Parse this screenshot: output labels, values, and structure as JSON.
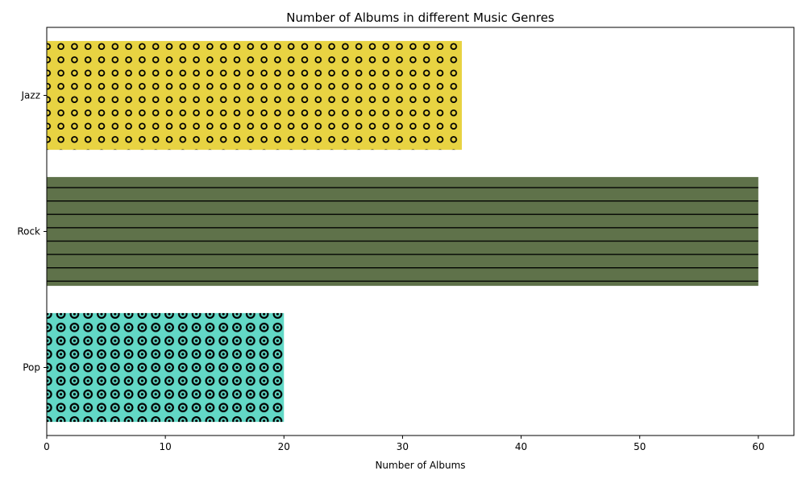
{
  "chart_data": {
    "type": "bar",
    "orientation": "horizontal",
    "title": "Number of Albums in different Music Genres",
    "xlabel": "Number of Albums",
    "ylabel": "",
    "categories": [
      "Jazz",
      "Rock",
      "Pop"
    ],
    "values": [
      35,
      60,
      20
    ],
    "colors": [
      "#e8d342",
      "#5f724a",
      "#62d8c6"
    ],
    "patterns": [
      "small-circles",
      "horizontal-lines",
      "ringed-dots"
    ],
    "xlim": [
      0,
      63
    ],
    "xticks": [
      0,
      10,
      20,
      30,
      40,
      50,
      60
    ],
    "grid": false,
    "legend": "none"
  }
}
